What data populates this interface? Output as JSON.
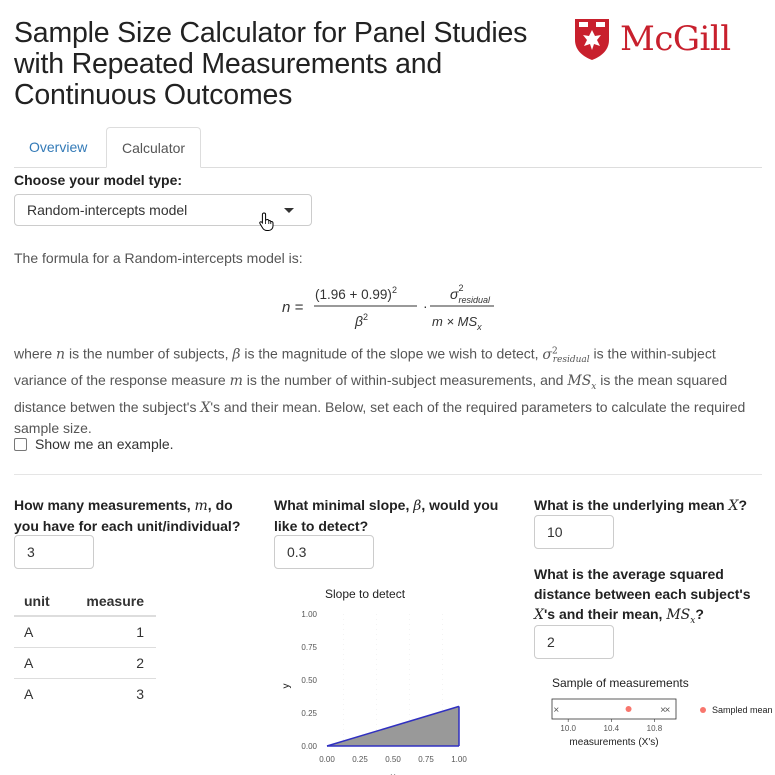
{
  "header": {
    "title": "Sample Size Calculator for Panel Studies with Repeated Measurements and Continuous Outcomes",
    "logo_text": "McGill",
    "logo_color": "#c8202d"
  },
  "tabs": [
    {
      "label": "Overview",
      "active": false
    },
    {
      "label": "Calculator",
      "active": true
    }
  ],
  "model": {
    "label": "Choose your model type:",
    "selected": "Random-intercepts model"
  },
  "formula_intro": "The formula for a Random-intercepts model is:",
  "formula": {
    "lhs": "n =",
    "numerator": "(1.96 + 0.99)",
    "numerator_exp": "2",
    "denominator": "β",
    "denominator_exp": "2",
    "dot": "·",
    "sigma": "σ",
    "sigma_sup": "2",
    "sigma_sub": "residual",
    "rhs_den": "m × MS",
    "rhs_den_sub": "x"
  },
  "description": {
    "p1": "where",
    "n": "n",
    "p2": "is the number of subjects,",
    "beta": "β",
    "p3": "is the magnitude of the slope we wish to detect,",
    "sigma": "σ",
    "sigma_sup": "2",
    "sigma_sub": "residual",
    "p4": "is the within-subject",
    "p5": "variance of the response measure",
    "m": "m",
    "p6": "is the number of within-subject measurements, and",
    "ms": "MS",
    "ms_sub": "x",
    "p7": "is the mean squared",
    "p8": "distance betwen the subject's",
    "x": "X",
    "p9": "'s and their mean. Below, set each of the required parameters to calculate the required",
    "p10": "sample size."
  },
  "example_checkbox": {
    "label": "Show me an example.",
    "checked": false
  },
  "measurements": {
    "label_a": "How many measurements,",
    "var": "m",
    "label_b": ", do",
    "label_c": "you have for each unit/individual?",
    "value": "3"
  },
  "slope": {
    "label_a": "What minimal slope,",
    "var": "β",
    "label_b": ", would you",
    "label_c": "like to detect?",
    "value": "0.3"
  },
  "mean_x": {
    "label_a": "What is the underlying mean",
    "var": "X",
    "label_b": "?",
    "value": "10"
  },
  "ms_x": {
    "label_a": "What is the average squared",
    "label_b": "distance between each subject's",
    "var_x": "X",
    "label_c": "'s and their mean,",
    "var_ms": "MS",
    "var_ms_sub": "x",
    "label_d": "?",
    "value": "2"
  },
  "table": {
    "columns": [
      "unit",
      "measure"
    ],
    "rows": [
      [
        "A",
        "1"
      ],
      [
        "A",
        "2"
      ],
      [
        "A",
        "3"
      ]
    ]
  },
  "slope_chart": {
    "title": "Slope to detect",
    "ylabel": "y",
    "xlabel": "x",
    "x_ticks": [
      "0.00",
      "0.25",
      "0.50",
      "0.75",
      "1.00"
    ],
    "y_ticks": [
      "0.00",
      "0.25",
      "0.50",
      "0.75",
      "1.00"
    ],
    "slope": 0.3,
    "fill_color": "#999999",
    "line_color": "#3030c0"
  },
  "sample_chart": {
    "title": "Sample of measurements",
    "xlabel": "measurements (X's)",
    "x_ticks": [
      "10.0",
      "10.4",
      "10.8"
    ],
    "legend": "Sampled mean",
    "point_color": "#f8766d",
    "mean_value": 10.56,
    "x_marker_symbol": "×"
  }
}
